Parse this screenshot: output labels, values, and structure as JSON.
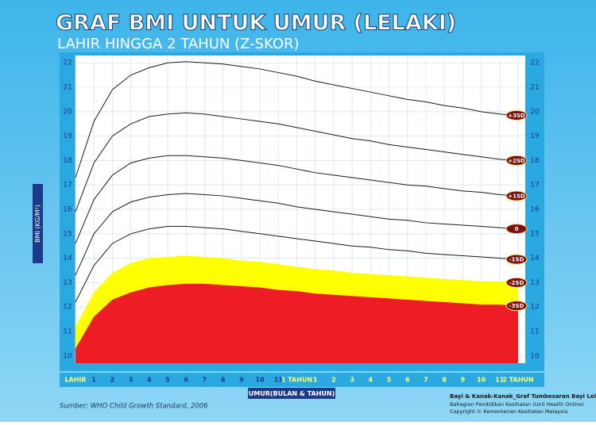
{
  "chart_data": {
    "type": "line",
    "title": "GRAF BMI UNTUK UMUR (LELAKI)",
    "subtitle": "LAHIR HINGGA 2 TAHUN (Z-SKOR)",
    "y_label": "BMI (KG/M²)",
    "x_label": "UMUR(BULAN & TAHUN)",
    "source": "Sumber: WHO Child Growth Standard, 2006",
    "credits": [
      "Bayi & Kanak-Kanak_Graf Tumbesaran Bayi Lelaki",
      "Bahagian Pendidikan Kesihatan (Unit Health Online)",
      "Copyright © Kementerian Kesihatan Malaysia"
    ],
    "x": [
      0,
      1,
      2,
      3,
      4,
      5,
      6,
      7,
      8,
      9,
      10,
      11,
      12,
      13,
      14,
      15,
      16,
      17,
      18,
      19,
      20,
      21,
      22,
      23,
      24
    ],
    "xlim": [
      0,
      24
    ],
    "xticks": [
      {
        "value": 0,
        "label": "LAHIR"
      },
      1,
      2,
      3,
      4,
      5,
      6,
      7,
      8,
      9,
      10,
      11,
      {
        "value": 12,
        "label": "1 TAHUN"
      },
      {
        "value": 13,
        "label": "1"
      },
      {
        "value": 14,
        "label": "2"
      },
      {
        "value": 15,
        "label": "3"
      },
      {
        "value": 16,
        "label": "4"
      },
      {
        "value": 17,
        "label": "5"
      },
      {
        "value": 18,
        "label": "6"
      },
      {
        "value": 19,
        "label": "7"
      },
      {
        "value": 20,
        "label": "8"
      },
      {
        "value": 21,
        "label": "9"
      },
      {
        "value": 22,
        "label": "10"
      },
      {
        "value": 23,
        "label": "11"
      },
      {
        "value": 24,
        "label": "2 TAHUN"
      }
    ],
    "ylim": [
      9.7,
      22.3
    ],
    "yticks": [
      10,
      11,
      12,
      13,
      14,
      15,
      16,
      17,
      18,
      19,
      20,
      21,
      22
    ],
    "grid": true,
    "series": [
      {
        "name": "+3SD",
        "type": "line",
        "color": "#1a1a1a",
        "values": [
          17.3,
          19.6,
          20.9,
          21.5,
          21.8,
          22.0,
          22.05,
          22.0,
          21.95,
          21.85,
          21.75,
          21.6,
          21.45,
          21.25,
          21.1,
          20.95,
          20.8,
          20.65,
          20.5,
          20.4,
          20.25,
          20.15,
          20.0,
          19.9,
          19.85
        ]
      },
      {
        "name": "+2SD",
        "type": "line",
        "color": "#1a1a1a",
        "values": [
          15.9,
          17.9,
          19.0,
          19.5,
          19.8,
          19.9,
          19.95,
          19.9,
          19.8,
          19.7,
          19.6,
          19.5,
          19.35,
          19.2,
          19.05,
          18.9,
          18.8,
          18.65,
          18.55,
          18.45,
          18.35,
          18.25,
          18.15,
          18.05,
          18.0
        ]
      },
      {
        "name": "+1SD",
        "type": "line",
        "color": "#1a1a1a",
        "values": [
          14.6,
          16.4,
          17.4,
          17.9,
          18.1,
          18.2,
          18.2,
          18.15,
          18.1,
          18.0,
          17.9,
          17.8,
          17.65,
          17.5,
          17.4,
          17.3,
          17.2,
          17.1,
          17.0,
          16.95,
          16.85,
          16.75,
          16.7,
          16.6,
          16.55
        ]
      },
      {
        "name": "0",
        "type": "line",
        "color": "#1a1a1a",
        "values": [
          13.3,
          15.0,
          15.9,
          16.3,
          16.5,
          16.6,
          16.65,
          16.6,
          16.55,
          16.45,
          16.35,
          16.25,
          16.1,
          16.0,
          15.9,
          15.8,
          15.7,
          15.6,
          15.55,
          15.45,
          15.4,
          15.35,
          15.3,
          15.25,
          15.2
        ]
      },
      {
        "name": "-1SD",
        "type": "line",
        "color": "#1a1a1a",
        "values": [
          12.2,
          13.7,
          14.6,
          15.0,
          15.2,
          15.3,
          15.3,
          15.25,
          15.2,
          15.1,
          15.0,
          14.9,
          14.8,
          14.7,
          14.6,
          14.5,
          14.45,
          14.35,
          14.3,
          14.2,
          14.15,
          14.1,
          14.05,
          14.0,
          13.95
        ]
      },
      {
        "name": "-2SD",
        "type": "area",
        "color": "#ffff00",
        "values": [
          11.2,
          12.6,
          13.4,
          13.8,
          14.0,
          14.05,
          14.1,
          14.05,
          14.0,
          13.9,
          13.85,
          13.75,
          13.65,
          13.55,
          13.5,
          13.4,
          13.35,
          13.3,
          13.25,
          13.2,
          13.15,
          13.1,
          13.05,
          13.05,
          13.0
        ]
      },
      {
        "name": "-3SD",
        "type": "area",
        "color": "#ee1c25",
        "values": [
          10.3,
          11.6,
          12.3,
          12.6,
          12.8,
          12.9,
          12.95,
          12.95,
          12.9,
          12.85,
          12.8,
          12.7,
          12.65,
          12.55,
          12.5,
          12.45,
          12.4,
          12.35,
          12.3,
          12.25,
          12.2,
          12.15,
          12.1,
          12.1,
          12.05
        ]
      }
    ]
  }
}
